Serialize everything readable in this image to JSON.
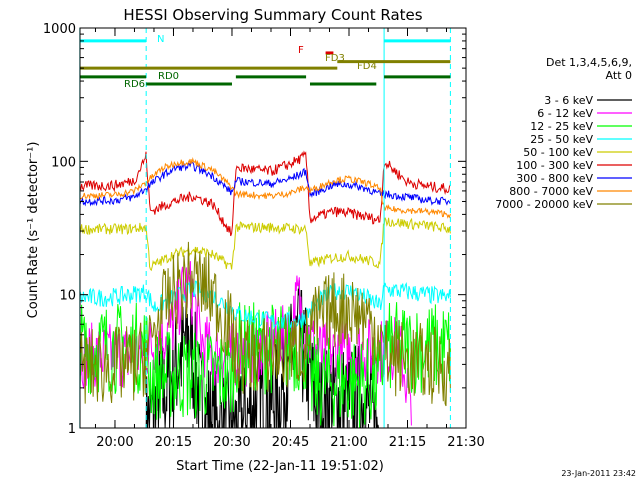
{
  "chart_data": {
    "type": "line",
    "title": "HESSI Observing Summary Count Rates",
    "xlabel": "Start Time (22-Jan-11 19:51:02)",
    "ylabel": "Count Rate (s⁻¹ detector⁻¹)",
    "xlim": [
      "19:51:02",
      "21:30:00"
    ],
    "ylim": [
      1,
      1000
    ],
    "yscale": "log",
    "grid": false,
    "x_ticks": [
      "20:00",
      "20:15",
      "20:30",
      "20:45",
      "21:00",
      "21:15",
      "21:30"
    ],
    "y_ticks": [
      "1",
      "10",
      "100",
      "1000"
    ],
    "timestamp": "23-Jan-2011 23:42",
    "legend": {
      "placement": "right",
      "header": [
        "Det 1,3,4,5,6,9,",
        "Att 0"
      ],
      "entries": [
        {
          "name": "3 - 6 keV",
          "color": "#000000"
        },
        {
          "name": "6 - 12 keV",
          "color": "#ff00ff"
        },
        {
          "name": "12 - 25 keV",
          "color": "#00ff00"
        },
        {
          "name": "25 - 50 keV",
          "color": "#00ffff"
        },
        {
          "name": "50 - 100 keV",
          "color": "#cccc00"
        },
        {
          "name": "100 - 300 keV",
          "color": "#dd0000"
        },
        {
          "name": "300 - 800 keV",
          "color": "#0000ff"
        },
        {
          "name": "800 - 7000 keV",
          "color": "#ff8800"
        },
        {
          "name": "7000 - 20000 keV",
          "color": "#808000"
        }
      ]
    },
    "series": [
      {
        "name": "3 - 6 keV",
        "color": "#000000",
        "x": [
          "20:08",
          "20:12",
          "20:16",
          "20:19",
          "20:22",
          "20:26",
          "20:32",
          "20:37",
          "20:42",
          "20:47",
          "20:49",
          "20:52",
          "20:56",
          "21:00",
          "21:04",
          "21:08"
        ],
        "y": [
          1,
          1.7,
          3,
          5,
          1.5,
          1,
          1,
          1.6,
          1.6,
          5,
          3,
          1.4,
          1.6,
          1.6,
          1.6,
          1
        ]
      },
      {
        "name": "6 - 12 keV",
        "color": "#ff00ff",
        "x": [
          "19:51",
          "20:05",
          "20:10",
          "20:15",
          "20:18",
          "20:20",
          "20:22",
          "20:25",
          "20:28",
          "20:33",
          "20:45",
          "20:47",
          "20:48",
          "20:50",
          "20:53",
          "21:00",
          "21:08",
          "21:13",
          "21:15",
          "21:16"
        ],
        "y": [
          3.5,
          3.5,
          4.2,
          6,
          12,
          10,
          4.5,
          3.5,
          3.5,
          3.5,
          5,
          10,
          7,
          4.5,
          3.6,
          3.8,
          3.8,
          4,
          2,
          1
        ]
      },
      {
        "name": "12 - 25 keV",
        "color": "#00ff00",
        "x": [
          "19:51",
          "20:08",
          "20:09",
          "20:30",
          "20:31",
          "20:49",
          "20:50",
          "21:08",
          "21:09",
          "21:26"
        ],
        "y": [
          4,
          4,
          2.5,
          2.5,
          4,
          4,
          2.2,
          2.2,
          4,
          4
        ]
      },
      {
        "name": "25 - 50 keV",
        "color": "#00ffff",
        "x": [
          "19:51",
          "19:58",
          "20:04",
          "20:08",
          "20:10",
          "20:15",
          "20:20",
          "20:25",
          "20:30",
          "20:31",
          "20:40",
          "20:47",
          "20:50",
          "20:53",
          "20:57",
          "21:01",
          "21:05",
          "21:08",
          "21:09",
          "21:15",
          "21:20",
          "21:26"
        ],
        "y": [
          9.5,
          9.5,
          10,
          10.5,
          8,
          9.5,
          11,
          9.8,
          7.8,
          7.2,
          6.3,
          6.3,
          7.5,
          9.2,
          10.8,
          10.5,
          9.3,
          8.2,
          11,
          10.5,
          10,
          9.5
        ]
      },
      {
        "name": "50 - 100 keV",
        "color": "#cccc00",
        "x": [
          "19:51",
          "20:03",
          "20:08",
          "20:09",
          "20:15",
          "20:20",
          "20:25",
          "20:30",
          "20:31",
          "20:40",
          "20:49",
          "20:50",
          "20:56",
          "21:00",
          "21:05",
          "21:08",
          "21:09",
          "21:15",
          "21:20",
          "21:26"
        ],
        "y": [
          31,
          31,
          32,
          16,
          20,
          22,
          20,
          16,
          32,
          32,
          31,
          17,
          19,
          19.5,
          18,
          17,
          36,
          34,
          33,
          31
        ]
      },
      {
        "name": "100 - 300 keV",
        "color": "#dd0000",
        "x": [
          "19:51",
          "20:00",
          "20:05",
          "20:08",
          "20:09",
          "20:15",
          "20:20",
          "20:25",
          "20:30",
          "20:31",
          "20:40",
          "20:45",
          "20:49",
          "20:50",
          "20:56",
          "21:00",
          "21:05",
          "21:08",
          "21:09",
          "21:15",
          "21:20",
          "21:26"
        ],
        "y": [
          65,
          66,
          72,
          110,
          42,
          50,
          55,
          48,
          28,
          90,
          84,
          96,
          110,
          37,
          42,
          41,
          38,
          36,
          100,
          70,
          65,
          62
        ]
      },
      {
        "name": "300 - 800 keV",
        "color": "#0000ff",
        "x": [
          "19:51",
          "20:00",
          "20:05",
          "20:08",
          "20:12",
          "20:16",
          "20:20",
          "20:25",
          "20:30",
          "20:31",
          "20:40",
          "20:45",
          "20:49",
          "20:50",
          "20:56",
          "21:00",
          "21:05",
          "21:08",
          "21:09",
          "21:15",
          "21:20",
          "21:26"
        ],
        "y": [
          50,
          51,
          54,
          63,
          78,
          90,
          92,
          78,
          58,
          71,
          68,
          74,
          84,
          56,
          67,
          67,
          62,
          56,
          57,
          54,
          51,
          50
        ]
      },
      {
        "name": "800 - 7000 keV",
        "color": "#ff8800",
        "x": [
          "19:51",
          "20:00",
          "20:05",
          "20:08",
          "20:12",
          "20:16",
          "20:20",
          "20:25",
          "20:30",
          "20:31",
          "20:40",
          "20:45",
          "20:49",
          "20:50",
          "20:56",
          "21:00",
          "21:05",
          "21:08",
          "21:09",
          "21:15",
          "21:20",
          "21:26"
        ],
        "y": [
          55,
          56,
          60,
          70,
          88,
          98,
          100,
          86,
          64,
          57,
          55,
          58,
          64,
          60,
          72,
          74,
          68,
          62,
          44,
          43,
          42,
          40
        ]
      },
      {
        "name": "7000 - 20000 keV",
        "color": "#808000",
        "x": [
          "19:51",
          "20:05",
          "20:08",
          "20:12",
          "20:16",
          "20:20",
          "20:25",
          "20:30",
          "20:31",
          "20:40",
          "20:49",
          "20:50",
          "20:55",
          "21:00",
          "21:05",
          "21:08",
          "21:09",
          "21:20",
          "21:26"
        ],
        "y": [
          2.8,
          3,
          3.5,
          7.5,
          11,
          13.5,
          10,
          5,
          3.5,
          3.5,
          4,
          5.5,
          7.5,
          8,
          6.5,
          5,
          3.5,
          3,
          2.8
        ]
      }
    ],
    "flag_lines": [
      {
        "label": "N",
        "color": "#00ffff",
        "y": 800,
        "segments": [
          [
            "19:51",
            "20:08"
          ],
          [
            "21:09",
            "21:26"
          ]
        ]
      },
      {
        "label": "F",
        "color": "#dd0000",
        "y": 650,
        "segments": [
          [
            "20:54",
            "20:56"
          ]
        ]
      },
      {
        "label": "FD3",
        "color": "#808000",
        "y": 560,
        "segments": [
          [
            "20:57",
            "21:26"
          ]
        ]
      },
      {
        "label": "FD4",
        "color": "#808000",
        "y": 500,
        "segments": [
          [
            "19:51",
            "20:57"
          ]
        ]
      },
      {
        "label": "RD0",
        "color": "#006600",
        "y": 430,
        "segments": [
          [
            "19:51",
            "20:08"
          ],
          [
            "20:31",
            "20:49"
          ],
          [
            "21:09",
            "21:26"
          ]
        ]
      },
      {
        "label": "RD6",
        "color": "#006600",
        "y": 380,
        "segments": [
          [
            "20:08",
            "20:30"
          ],
          [
            "20:50",
            "21:07"
          ]
        ]
      }
    ],
    "saa_boundaries": {
      "color": "#00ffff",
      "solid": [
        "19:51",
        "21:09"
      ],
      "dashed": [
        "20:08",
        "21:26"
      ]
    }
  }
}
